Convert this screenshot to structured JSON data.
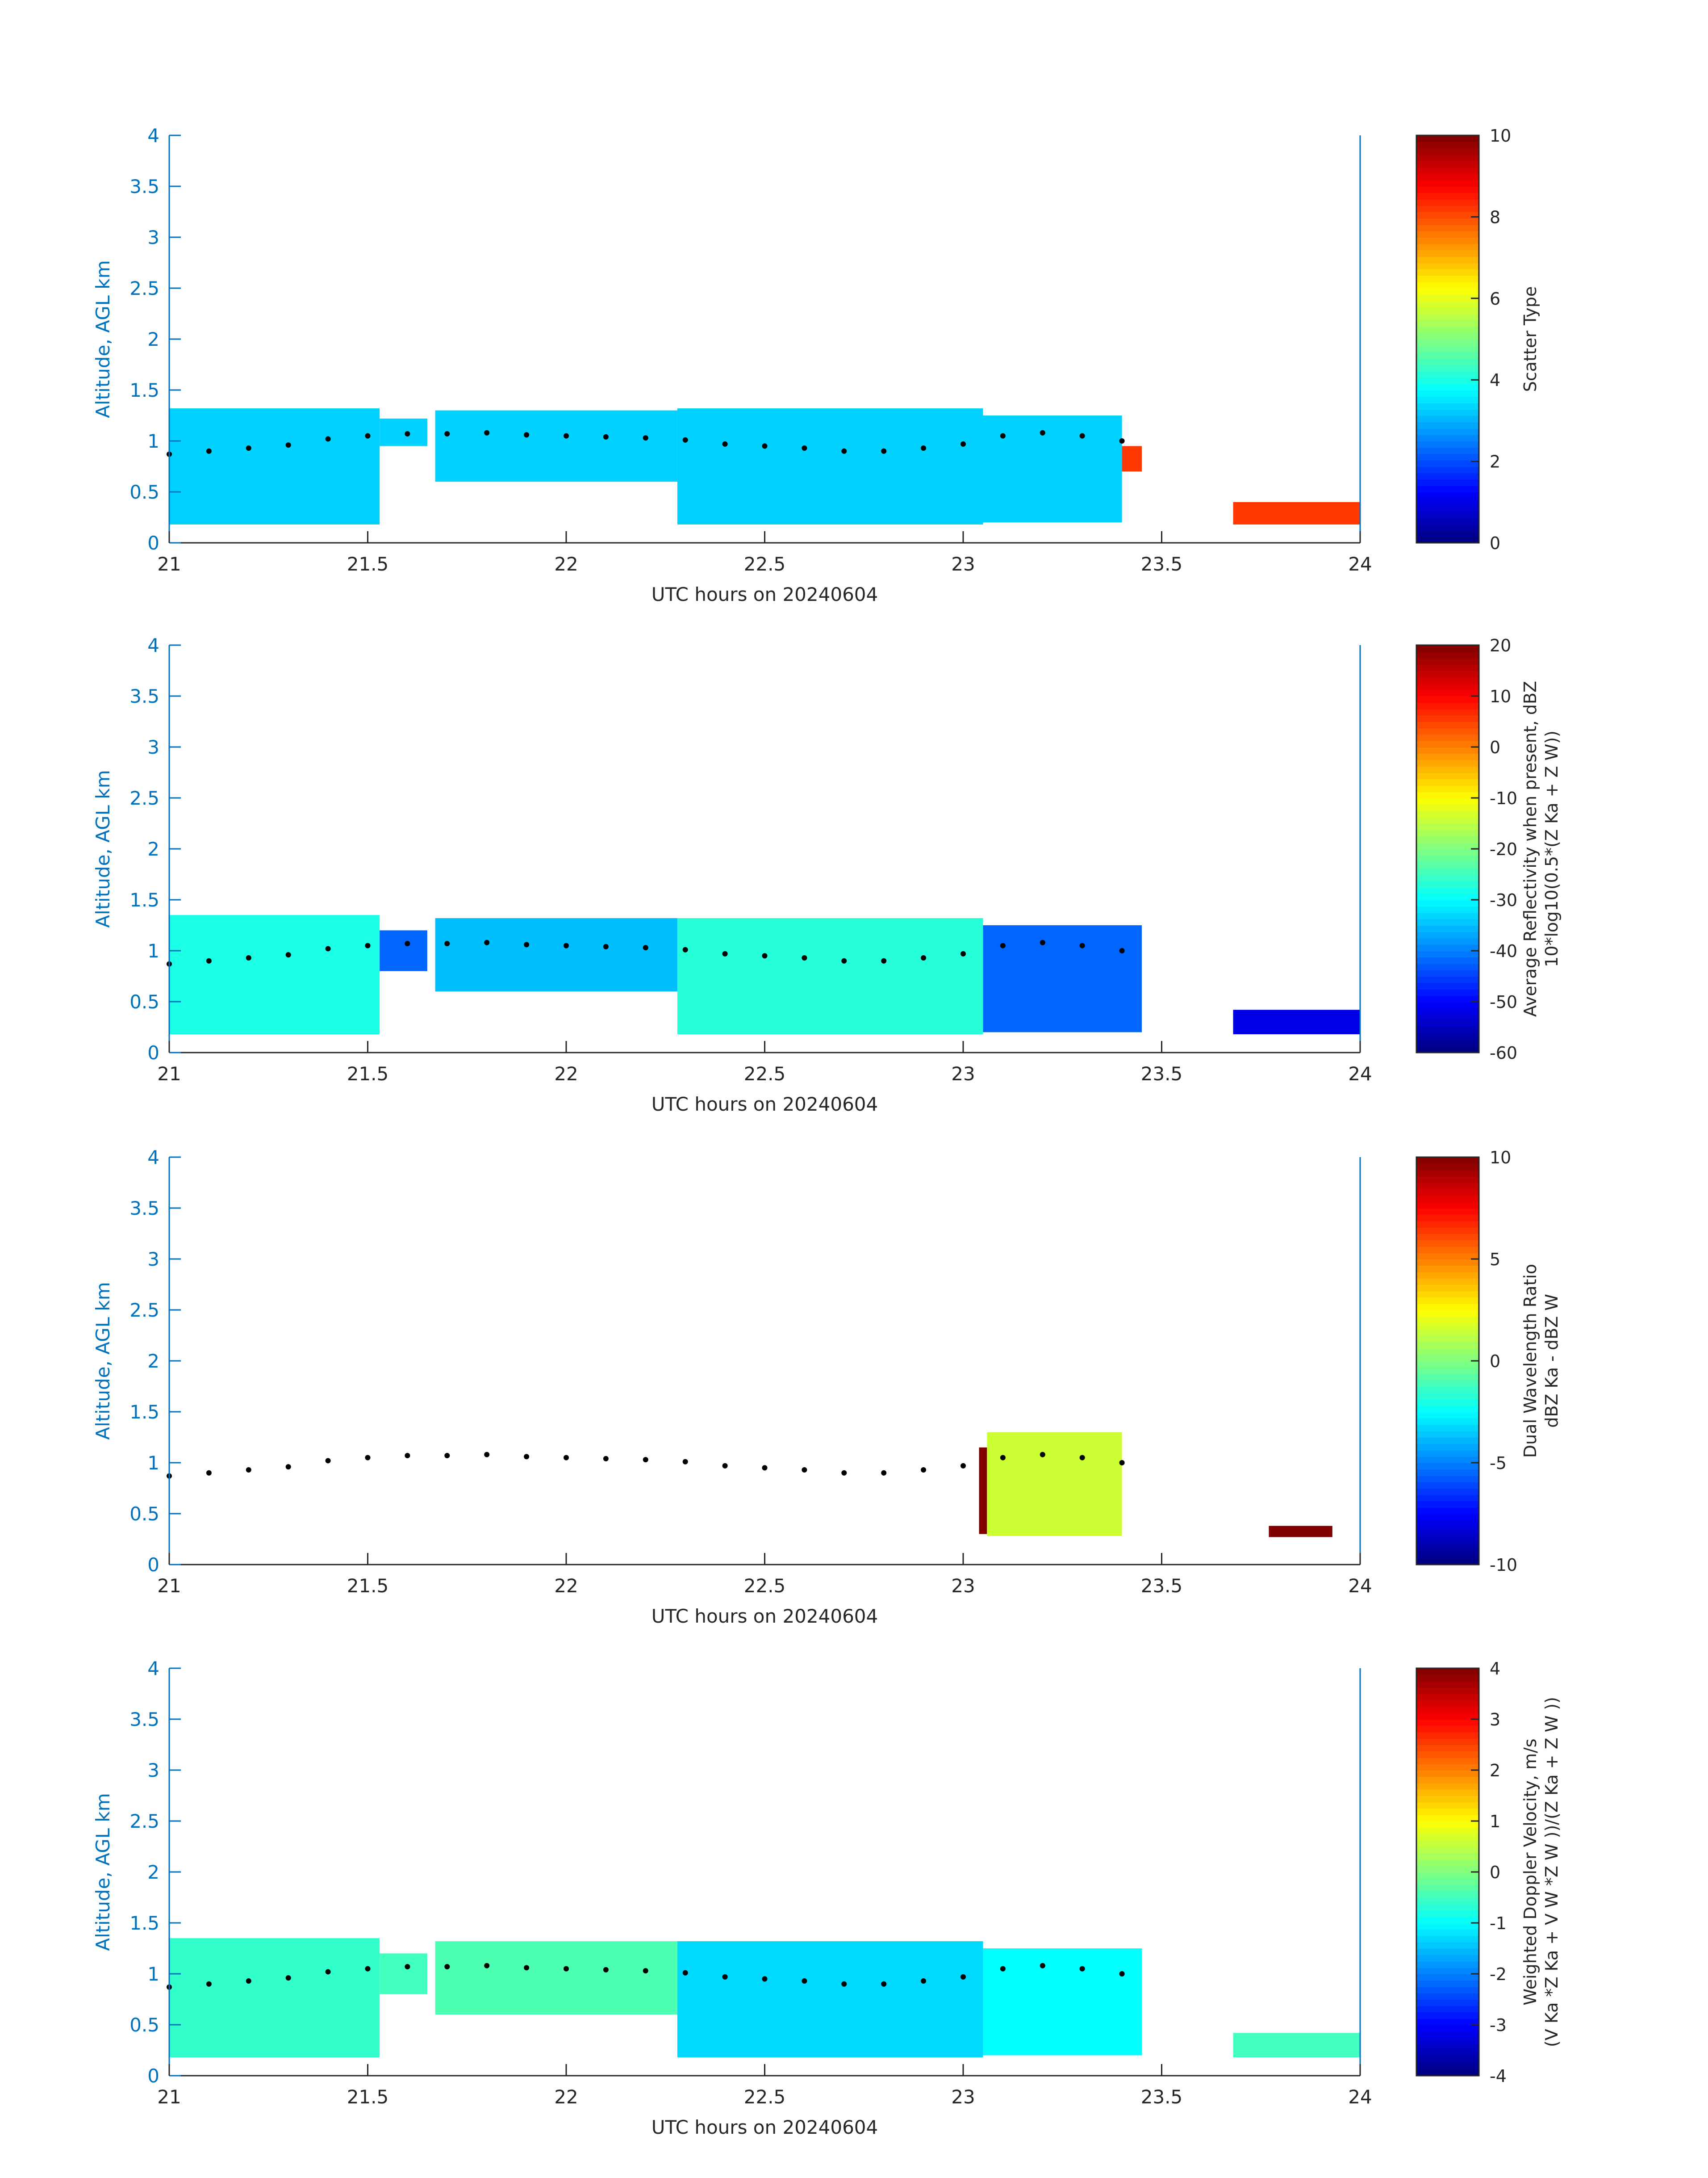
{
  "chart_data": [
    {
      "type": "heatmap",
      "xlabel": "UTC hours on 20240604",
      "ylabel": "Altitude, AGL km",
      "xlim": [
        21,
        24
      ],
      "ylim": [
        0,
        4
      ],
      "xticks": [
        "21",
        "21.5",
        "22",
        "22.5",
        "23",
        "23.5",
        "24"
      ],
      "yticks": [
        "0",
        "0.5",
        "1",
        "1.5",
        "2",
        "2.5",
        "3",
        "3.5",
        "4"
      ],
      "colorbar": {
        "label": [
          "Scatter Type"
        ],
        "range": [
          0,
          10
        ],
        "ticks": [
          "0",
          "2",
          "4",
          "6",
          "8",
          "10"
        ]
      },
      "colormap": "jet",
      "segments": [
        {
          "x0": 21.0,
          "x1": 21.53,
          "bottom": 0.18,
          "top": 1.32,
          "value": 3.3
        },
        {
          "x0": 21.53,
          "x1": 21.65,
          "bottom": 0.95,
          "top": 1.22,
          "value": 3.3
        },
        {
          "x0": 21.67,
          "x1": 22.28,
          "bottom": 0.6,
          "top": 1.3,
          "value": 3.3
        },
        {
          "x0": 22.28,
          "x1": 23.05,
          "bottom": 0.18,
          "top": 1.32,
          "value": 3.3
        },
        {
          "x0": 23.05,
          "x1": 23.4,
          "bottom": 0.2,
          "top": 1.25,
          "value": 3.3
        },
        {
          "x0": 23.4,
          "x1": 23.45,
          "bottom": 0.7,
          "top": 0.95,
          "value": 8.2
        },
        {
          "x0": 23.68,
          "x1": 24.0,
          "bottom": 0.18,
          "top": 0.4,
          "value": 8.2
        }
      ]
    },
    {
      "type": "heatmap",
      "xlabel": "UTC hours on 20240604",
      "ylabel": "Altitude, AGL km",
      "xlim": [
        21,
        24
      ],
      "ylim": [
        0,
        4
      ],
      "xticks": [
        "21",
        "21.5",
        "22",
        "22.5",
        "23",
        "23.5",
        "24"
      ],
      "yticks": [
        "0",
        "0.5",
        "1",
        "1.5",
        "2",
        "2.5",
        "3",
        "3.5",
        "4"
      ],
      "colorbar": {
        "label": [
          "Average Reflectivity when present, dBZ",
          "10*log10(0.5*(Z Ka + Z W))"
        ],
        "range": [
          -60,
          20
        ],
        "ticks": [
          "-60",
          "-50",
          "-40",
          "-30",
          "-20",
          "-10",
          "0",
          "10",
          "20"
        ]
      },
      "colormap": "jet",
      "segments": [
        {
          "x0": 21.0,
          "x1": 21.53,
          "bottom": 0.18,
          "top": 1.35,
          "value": -28
        },
        {
          "x0": 21.53,
          "x1": 21.65,
          "bottom": 0.8,
          "top": 1.2,
          "value": -42
        },
        {
          "x0": 21.67,
          "x1": 22.28,
          "bottom": 0.6,
          "top": 1.32,
          "value": -35
        },
        {
          "x0": 22.28,
          "x1": 23.05,
          "bottom": 0.18,
          "top": 1.32,
          "value": -27
        },
        {
          "x0": 23.05,
          "x1": 23.45,
          "bottom": 0.2,
          "top": 1.25,
          "value": -42
        },
        {
          "x0": 23.68,
          "x1": 24.0,
          "bottom": 0.18,
          "top": 0.42,
          "value": -52
        }
      ]
    },
    {
      "type": "heatmap",
      "xlabel": "UTC hours on 20240604",
      "ylabel": "Altitude, AGL km",
      "xlim": [
        21,
        24
      ],
      "ylim": [
        0,
        4
      ],
      "xticks": [
        "21",
        "21.5",
        "22",
        "22.5",
        "23",
        "23.5",
        "24"
      ],
      "yticks": [
        "0",
        "0.5",
        "1",
        "1.5",
        "2",
        "2.5",
        "3",
        "3.5",
        "4"
      ],
      "colorbar": {
        "label": [
          "Dual Wavelength Ratio",
          "dBZ Ka - dBZ W"
        ],
        "range": [
          -10,
          10
        ],
        "ticks": [
          "-10",
          "-5",
          "0",
          "5",
          "10"
        ]
      },
      "colormap": "jet",
      "segments": [
        {
          "x0": 23.04,
          "x1": 23.06,
          "bottom": 0.3,
          "top": 1.15,
          "value": 10
        },
        {
          "x0": 23.06,
          "x1": 23.4,
          "bottom": 0.28,
          "top": 1.3,
          "value": 1.5
        },
        {
          "x0": 23.77,
          "x1": 23.93,
          "bottom": 0.27,
          "top": 0.38,
          "value": 10
        }
      ]
    },
    {
      "type": "heatmap",
      "xlabel": "UTC hours on 20240604",
      "ylabel": "Altitude, AGL km",
      "xlim": [
        21,
        24
      ],
      "ylim": [
        0,
        4
      ],
      "xticks": [
        "21",
        "21.5",
        "22",
        "22.5",
        "23",
        "23.5",
        "24"
      ],
      "yticks": [
        "0",
        "0.5",
        "1",
        "1.5",
        "2",
        "2.5",
        "3",
        "3.5",
        "4"
      ],
      "colorbar": {
        "label": [
          "Weighted Doppler Velocity, m/s",
          "(V Ka *Z Ka + V W *Z W ))/(Z Ka + Z W ))"
        ],
        "range": [
          -4,
          4
        ],
        "ticks": [
          "-4",
          "-3",
          "-2",
          "-1",
          "0",
          "1",
          "2",
          "3",
          "4"
        ]
      },
      "colormap": "jet",
      "segments": [
        {
          "x0": 21.0,
          "x1": 21.53,
          "bottom": 0.18,
          "top": 1.35,
          "value": -0.6
        },
        {
          "x0": 21.53,
          "x1": 21.65,
          "bottom": 0.8,
          "top": 1.2,
          "value": -0.5
        },
        {
          "x0": 21.67,
          "x1": 22.28,
          "bottom": 0.6,
          "top": 1.32,
          "value": -0.4
        },
        {
          "x0": 22.28,
          "x1": 23.05,
          "bottom": 0.18,
          "top": 1.32,
          "value": -1.3
        },
        {
          "x0": 23.05,
          "x1": 23.45,
          "bottom": 0.2,
          "top": 1.25,
          "value": -1.0
        },
        {
          "x0": 23.68,
          "x1": 24.0,
          "bottom": 0.18,
          "top": 0.42,
          "value": -0.5
        }
      ]
    }
  ],
  "cloud_base_line": {
    "x": [
      21.0,
      21.1,
      21.2,
      21.3,
      21.4,
      21.5,
      21.6,
      21.7,
      21.8,
      21.9,
      22.0,
      22.1,
      22.2,
      22.3,
      22.4,
      22.5,
      22.6,
      22.7,
      22.8,
      22.9,
      23.0,
      23.1,
      23.2,
      23.3,
      23.4
    ],
    "y": [
      0.87,
      0.9,
      0.93,
      0.96,
      1.02,
      1.05,
      1.07,
      1.07,
      1.08,
      1.06,
      1.05,
      1.04,
      1.03,
      1.01,
      0.97,
      0.95,
      0.93,
      0.9,
      0.9,
      0.93,
      0.97,
      1.05,
      1.08,
      1.05,
      1.0
    ]
  }
}
